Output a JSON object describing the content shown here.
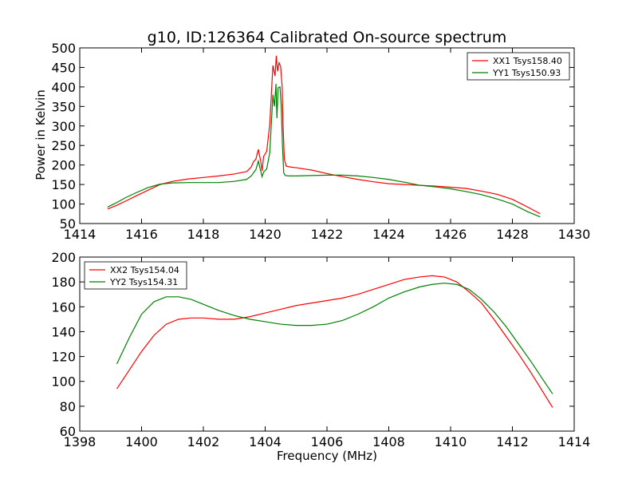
{
  "chart_data": [
    {
      "type": "line",
      "title": "g10, ID:126364 Calibrated On-source spectrum",
      "xlabel": "",
      "ylabel": "Power in Kelvin",
      "xlim": [
        1414,
        1430
      ],
      "ylim": [
        50,
        500
      ],
      "xticks": [
        "1414",
        "1416",
        "1418",
        "1420",
        "1422",
        "1424",
        "1426",
        "1428",
        "1430"
      ],
      "yticks": [
        "50",
        "100",
        "150",
        "200",
        "250",
        "300",
        "350",
        "400",
        "450",
        "500"
      ],
      "grid": false,
      "legend_position": "top-right",
      "series": [
        {
          "name": "XX1 Tsys158.40",
          "color": "#ff0000",
          "x": [
            1414.9,
            1415.2,
            1415.5,
            1415.8,
            1416.2,
            1416.6,
            1417.0,
            1417.5,
            1418.0,
            1418.5,
            1419.0,
            1419.4,
            1419.55,
            1419.62,
            1419.7,
            1419.78,
            1419.86,
            1419.9,
            1419.95,
            1420.05,
            1420.15,
            1420.25,
            1420.32,
            1420.36,
            1420.4,
            1420.45,
            1420.5,
            1420.55,
            1420.58,
            1420.62,
            1420.68,
            1420.8,
            1421.0,
            1421.5,
            1422.0,
            1422.5,
            1423.0,
            1423.5,
            1424.0,
            1424.5,
            1425.0,
            1425.5,
            1426.0,
            1426.5,
            1427.0,
            1427.5,
            1428.0,
            1428.5,
            1428.9
          ],
          "y": [
            87,
            97,
            108,
            120,
            135,
            150,
            158,
            164,
            168,
            172,
            177,
            183,
            195,
            208,
            215,
            240,
            208,
            185,
            222,
            235,
            305,
            455,
            428,
            480,
            440,
            462,
            452,
            400,
            300,
            215,
            197,
            195,
            193,
            187,
            178,
            170,
            163,
            157,
            152,
            150,
            148,
            146,
            143,
            140,
            133,
            125,
            112,
            92,
            75
          ]
        },
        {
          "name": "YY1 Tsys150.93",
          "color": "#008000",
          "x": [
            1414.9,
            1415.2,
            1415.5,
            1415.8,
            1416.2,
            1416.6,
            1417.0,
            1417.5,
            1418.0,
            1418.5,
            1419.0,
            1419.4,
            1419.55,
            1419.62,
            1419.7,
            1419.78,
            1419.86,
            1419.9,
            1419.95,
            1420.05,
            1420.15,
            1420.25,
            1420.3,
            1420.35,
            1420.38,
            1420.42,
            1420.48,
            1420.52,
            1420.56,
            1420.6,
            1420.65,
            1420.75,
            1421.0,
            1421.5,
            1422.0,
            1422.5,
            1423.0,
            1423.5,
            1424.0,
            1424.5,
            1425.0,
            1425.5,
            1426.0,
            1426.5,
            1427.0,
            1427.5,
            1428.0,
            1428.5,
            1428.9
          ],
          "y": [
            92,
            104,
            117,
            128,
            142,
            151,
            154,
            155,
            155,
            155,
            158,
            163,
            172,
            180,
            188,
            210,
            183,
            170,
            182,
            190,
            232,
            380,
            350,
            408,
            320,
            398,
            400,
            350,
            250,
            180,
            173,
            172,
            172,
            173,
            174,
            174,
            172,
            168,
            163,
            156,
            148,
            144,
            139,
            132,
            124,
            113,
            100,
            80,
            67
          ]
        }
      ]
    },
    {
      "type": "line",
      "title": "",
      "xlabel": "Frequency (MHz)",
      "ylabel": "",
      "xlim": [
        1398,
        1414
      ],
      "ylim": [
        60,
        200
      ],
      "xticks": [
        "1398",
        "1400",
        "1402",
        "1404",
        "1406",
        "1408",
        "1410",
        "1412",
        "1414"
      ],
      "yticks": [
        "60",
        "80",
        "100",
        "120",
        "140",
        "160",
        "180",
        "200"
      ],
      "grid": false,
      "legend_position": "top-left",
      "series": [
        {
          "name": "XX2 Tsys154.04",
          "color": "#ff0000",
          "x": [
            1399.2,
            1399.6,
            1400.0,
            1400.4,
            1400.8,
            1401.2,
            1401.6,
            1402.0,
            1402.5,
            1403.0,
            1403.5,
            1404.0,
            1404.5,
            1405.0,
            1405.5,
            1406.0,
            1406.5,
            1407.0,
            1407.5,
            1408.0,
            1408.5,
            1409.0,
            1409.4,
            1409.8,
            1410.2,
            1410.6,
            1411.0,
            1411.4,
            1411.8,
            1412.2,
            1412.6,
            1413.0,
            1413.3
          ],
          "y": [
            94,
            109,
            124,
            137,
            146,
            150,
            151,
            151,
            150,
            150,
            152,
            155,
            158,
            161,
            163,
            165,
            167,
            170,
            174,
            178,
            182,
            184,
            185,
            184,
            180,
            172,
            163,
            150,
            136,
            122,
            107,
            91,
            79
          ]
        },
        {
          "name": "YY2 Tsys154.31",
          "color": "#008000",
          "x": [
            1399.2,
            1399.6,
            1400.0,
            1400.4,
            1400.8,
            1401.2,
            1401.6,
            1402.0,
            1402.5,
            1403.0,
            1403.5,
            1404.0,
            1404.5,
            1405.0,
            1405.5,
            1406.0,
            1406.5,
            1407.0,
            1407.5,
            1408.0,
            1408.5,
            1409.0,
            1409.4,
            1409.8,
            1410.2,
            1410.6,
            1411.0,
            1411.4,
            1411.8,
            1412.2,
            1412.6,
            1413.0,
            1413.3
          ],
          "y": [
            114,
            135,
            154,
            164,
            168,
            168,
            166,
            162,
            157,
            153,
            150,
            148,
            146,
            145,
            145,
            146,
            149,
            154,
            160,
            167,
            172,
            176,
            178,
            179,
            178,
            174,
            166,
            156,
            144,
            130,
            116,
            101,
            90
          ]
        }
      ]
    }
  ]
}
